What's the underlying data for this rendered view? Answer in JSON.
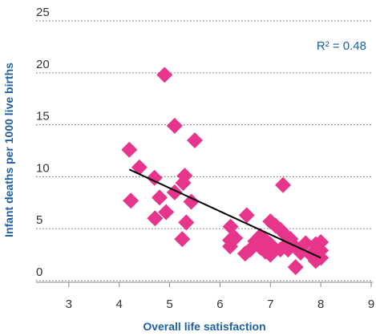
{
  "chart_data": {
    "type": "scatter",
    "x_label": "Overall life satisfaction",
    "y_label": "Infant deaths per 1000 live births",
    "annotation": "R² = 0.48",
    "color": "#e6358b",
    "trend_color": "#000000",
    "x": [
      4.9,
      5.1,
      5.5,
      4.2,
      4.4,
      4.7,
      5.3,
      5.27,
      4.8,
      5.1,
      5.43,
      4.23,
      4.93,
      4.71,
      5.33,
      5.25,
      7.25,
      6.53,
      6.21,
      6.2,
      6.2,
      6.3,
      6.5,
      6.6,
      6.7,
      6.8,
      6.8,
      6.9,
      7.0,
      7.0,
      7.0,
      7.1,
      7.2,
      7.2,
      7.3,
      7.3,
      7.4,
      7.5,
      7.5,
      7.6,
      7.7,
      7.8,
      7.9,
      7.9,
      8.0,
      8.0,
      8.0,
      7.0,
      6.9,
      7.35
    ],
    "y": [
      19.8,
      14.9,
      13.5,
      12.6,
      10.9,
      9.9,
      10.1,
      9.4,
      8.0,
      8.5,
      7.6,
      7.7,
      6.6,
      6.0,
      5.6,
      4.0,
      9.2,
      6.3,
      5.2,
      3.9,
      3.3,
      4.1,
      2.6,
      3.0,
      3.8,
      3.2,
      4.3,
      2.8,
      3.5,
      2.5,
      5.7,
      5.3,
      3.0,
      4.9,
      4.4,
      3.4,
      4.0,
      3.2,
      1.3,
      2.7,
      3.6,
      2.5,
      3.5,
      1.9,
      2.9,
      3.7,
      2.2,
      2.9,
      3.9,
      3.0
    ],
    "trendline": {
      "x": [
        4.2,
        8.0
      ],
      "y": [
        10.7,
        2.2
      ]
    },
    "xlim": [
      2.35,
      9
    ],
    "xticks": [
      3,
      4,
      5,
      6,
      7,
      8,
      9
    ],
    "ylim": [
      0,
      25
    ],
    "yticks": [
      0,
      5,
      10,
      15,
      20,
      25
    ],
    "grid": true
  }
}
